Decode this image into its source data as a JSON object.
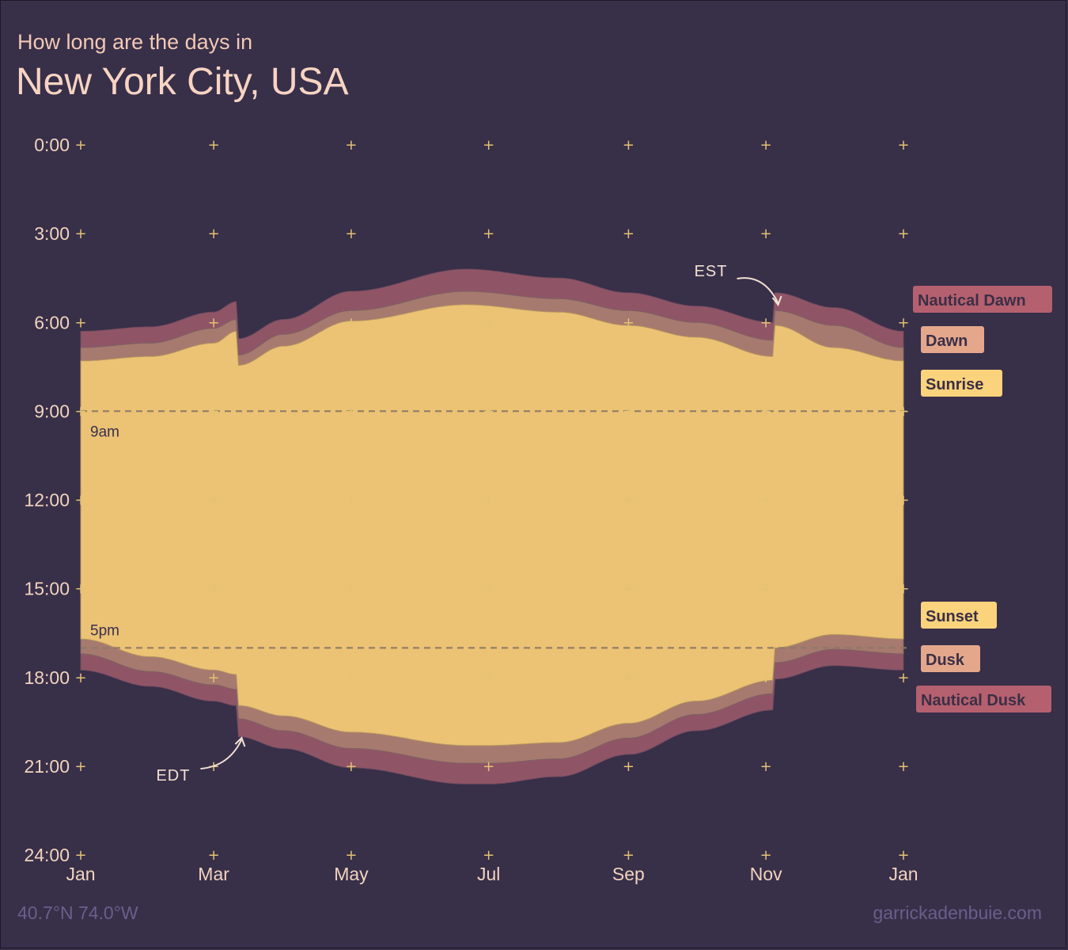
{
  "header": {
    "subtitle": "How long are the days in",
    "title": "New York City, USA"
  },
  "footer": {
    "coords": "40.7°N 74.0°W",
    "credit": "garrickadenbuie.com"
  },
  "colors": {
    "background": "#382f49",
    "nautical": "#8f5567",
    "twilight": "#a77a6f",
    "day": "#ecc274",
    "legend_nautical": "#b5606f",
    "legend_dawn": "#e4a78c",
    "legend_sunrise": "#fbd37c",
    "ticks": "#e4c371"
  },
  "chart_data": {
    "type": "area",
    "title": "New York City, USA",
    "x_unit": "day of year",
    "y_unit": "hour of day",
    "ylim": [
      24,
      0
    ],
    "y_ticks": [
      {
        "value": 0,
        "label": "0:00"
      },
      {
        "value": 3,
        "label": "3:00"
      },
      {
        "value": 6,
        "label": "6:00"
      },
      {
        "value": 9,
        "label": "9:00"
      },
      {
        "value": 12,
        "label": "12:00"
      },
      {
        "value": 15,
        "label": "15:00"
      },
      {
        "value": 18,
        "label": "18:00"
      },
      {
        "value": 21,
        "label": "21:00"
      },
      {
        "value": 24,
        "label": "24:00"
      }
    ],
    "x_ticks": [
      {
        "value": 1,
        "label": "Jan"
      },
      {
        "value": 60,
        "label": "Mar"
      },
      {
        "value": 121,
        "label": "May"
      },
      {
        "value": 182,
        "label": "Jul"
      },
      {
        "value": 244,
        "label": "Sep"
      },
      {
        "value": 305,
        "label": "Nov"
      },
      {
        "value": 366,
        "label": "Jan"
      }
    ],
    "reference_lines": [
      {
        "y": 9,
        "label": "9am"
      },
      {
        "y": 17,
        "label": "5pm"
      }
    ],
    "dst_start_day": 71,
    "dst_end_day": 309,
    "annotations": [
      {
        "label": "EDT",
        "x": 71
      },
      {
        "label": "EST",
        "x": 309
      }
    ],
    "legend": [
      "Nautical Dawn",
      "Dawn",
      "Sunrise",
      "Sunset",
      "Dusk",
      "Nautical Dusk"
    ],
    "series": [
      {
        "name": "Nautical Dawn",
        "days": [
          1,
          32,
          60,
          70,
          71,
          91,
          121,
          172,
          213,
          244,
          274,
          308,
          309,
          335,
          366
        ],
        "hours": [
          6.3,
          6.15,
          5.65,
          5.3,
          6.55,
          5.9,
          4.95,
          4.2,
          4.5,
          5.0,
          5.45,
          6.0,
          5.0,
          5.5,
          6.3
        ]
      },
      {
        "name": "Dawn",
        "days": [
          1,
          32,
          60,
          70,
          71,
          91,
          121,
          172,
          213,
          244,
          274,
          308,
          309,
          335,
          366
        ],
        "hours": [
          6.85,
          6.7,
          6.2,
          5.9,
          7.1,
          6.4,
          5.6,
          4.95,
          5.2,
          5.6,
          6.0,
          6.6,
          5.6,
          6.1,
          6.85
        ]
      },
      {
        "name": "Sunrise",
        "days": [
          1,
          32,
          60,
          70,
          71,
          91,
          121,
          172,
          213,
          244,
          274,
          308,
          309,
          335,
          366
        ],
        "hours": [
          7.3,
          7.15,
          6.7,
          6.3,
          7.45,
          6.8,
          5.95,
          5.4,
          5.65,
          6.1,
          6.5,
          7.15,
          6.1,
          6.85,
          7.3
        ]
      },
      {
        "name": "Sunset",
        "days": [
          1,
          32,
          60,
          70,
          71,
          91,
          121,
          172,
          182,
          213,
          244,
          274,
          308,
          309,
          335,
          366
        ],
        "hours": [
          16.7,
          17.3,
          17.75,
          17.9,
          18.95,
          19.3,
          19.85,
          20.3,
          20.3,
          20.2,
          19.55,
          18.8,
          18.1,
          17.0,
          16.55,
          16.7
        ]
      },
      {
        "name": "Dusk",
        "days": [
          1,
          32,
          60,
          70,
          71,
          91,
          121,
          172,
          182,
          213,
          244,
          274,
          308,
          309,
          335,
          366
        ],
        "hours": [
          17.2,
          17.8,
          18.25,
          18.4,
          19.4,
          19.8,
          20.4,
          20.9,
          20.9,
          20.75,
          20.05,
          19.25,
          18.55,
          17.5,
          17.05,
          17.2
        ]
      },
      {
        "name": "Nautical Dusk",
        "days": [
          1,
          32,
          60,
          70,
          71,
          91,
          121,
          172,
          182,
          213,
          244,
          274,
          308,
          309,
          335,
          366
        ],
        "hours": [
          17.75,
          18.3,
          18.8,
          18.95,
          20.0,
          20.4,
          21.05,
          21.6,
          21.6,
          21.35,
          20.6,
          19.8,
          19.1,
          18.05,
          17.6,
          17.75
        ]
      }
    ]
  }
}
